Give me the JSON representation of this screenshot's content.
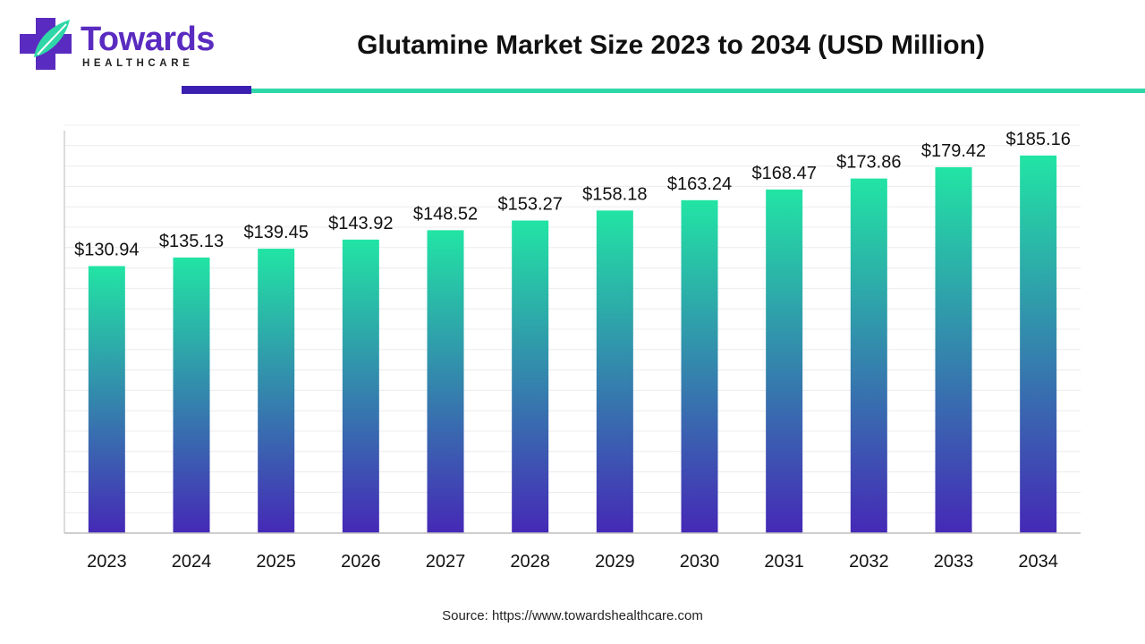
{
  "brand": {
    "name": "Towards",
    "subtitle": "HEALTHCARE",
    "colors": {
      "primary": "#5a2bc0",
      "accent": "#2fd7a8"
    }
  },
  "source_text": "Source: https://www.towardshealthcare.com",
  "chart_data": {
    "type": "bar",
    "title": "Glutamine Market Size 2023 to 2034 (USD Million)",
    "xlabel": "",
    "ylabel": "",
    "ylim": [
      0,
      200
    ],
    "grid": true,
    "categories": [
      "2023",
      "2024",
      "2025",
      "2026",
      "2027",
      "2028",
      "2029",
      "2030",
      "2031",
      "2032",
      "2033",
      "2034"
    ],
    "values": [
      130.94,
      135.13,
      139.45,
      143.92,
      148.52,
      153.27,
      158.18,
      163.24,
      168.47,
      173.86,
      179.42,
      185.16
    ],
    "labels": [
      "$130.94",
      "$135.13",
      "$139.45",
      "$143.92",
      "$148.52",
      "$153.27",
      "$158.18",
      "$163.24",
      "$168.47",
      "$173.86",
      "$179.42",
      "$185.16"
    ],
    "bar_gradient": {
      "top": "#22e4a4",
      "bottom": "#4529b6"
    }
  }
}
